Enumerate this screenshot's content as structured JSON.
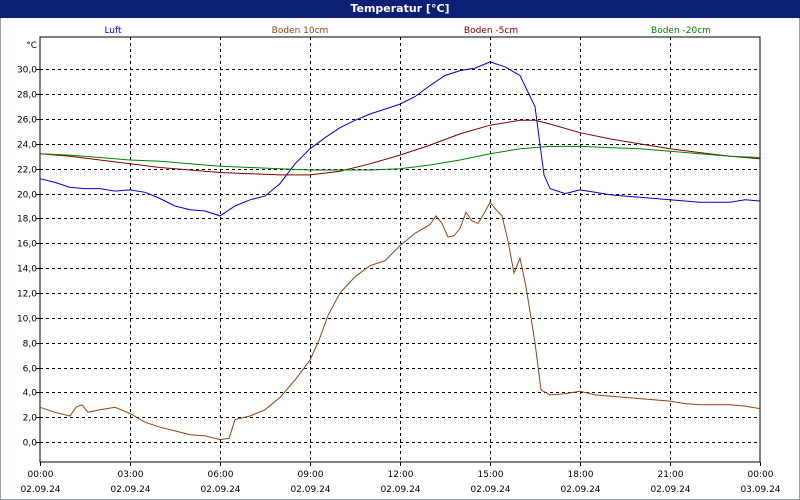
{
  "window": {
    "title": "Temperatur [°C]"
  },
  "chart_data": {
    "type": "line",
    "title": "Temperatur [°C]",
    "ylabel": "°C",
    "ylim": [
      -1.6,
      32.6
    ],
    "grid": true,
    "legend": "top",
    "y_ticks": [
      "0,0",
      "2,0",
      "4,0",
      "6,0",
      "8,0",
      "10,0",
      "12,0",
      "14,0",
      "16,0",
      "18,0",
      "20,0",
      "22,0",
      "24,0",
      "26,0",
      "28,0",
      "30,0"
    ],
    "x_ticks": [
      {
        "time": "00:00",
        "date": "02.09.24"
      },
      {
        "time": "03:00",
        "date": "02.09.24"
      },
      {
        "time": "06:00",
        "date": "02.09.24"
      },
      {
        "time": "09:00",
        "date": "02.09.24"
      },
      {
        "time": "12:00",
        "date": "02.09.24"
      },
      {
        "time": "15:00",
        "date": "02.09.24"
      },
      {
        "time": "18:00",
        "date": "02.09.24"
      },
      {
        "time": "21:00",
        "date": "02.09.24"
      },
      {
        "time": "00:00",
        "date": "03.09.24"
      }
    ],
    "x_unit": "hours since 02.09.24 00:00",
    "series": [
      {
        "name": "Luft",
        "color": "#0000cc",
        "x": [
          0,
          0.5,
          1,
          1.5,
          2,
          2.5,
          3,
          3.5,
          4,
          4.5,
          5,
          5.5,
          6,
          6.5,
          7,
          7.5,
          8,
          8.5,
          9,
          9.5,
          10,
          10.5,
          11,
          11.5,
          12,
          12.5,
          13,
          13.5,
          14,
          14.5,
          15,
          15.5,
          16,
          16.5,
          16.8,
          17,
          17.5,
          18,
          18.5,
          19,
          19.5,
          20,
          20.5,
          21,
          21.5,
          22,
          22.5,
          23,
          23.5,
          24
        ],
        "y": [
          21.2,
          20.9,
          20.5,
          20.4,
          20.4,
          20.2,
          20.3,
          20.1,
          19.6,
          19.0,
          18.7,
          18.6,
          18.2,
          19.0,
          19.5,
          19.8,
          20.8,
          22.4,
          23.6,
          24.5,
          25.3,
          25.9,
          26.4,
          26.8,
          27.2,
          27.8,
          28.7,
          29.5,
          29.9,
          30.1,
          30.6,
          30.2,
          29.5,
          27.0,
          21.5,
          20.4,
          20.0,
          20.3,
          20.1,
          19.9,
          19.8,
          19.7,
          19.6,
          19.5,
          19.4,
          19.3,
          19.3,
          19.3,
          19.5,
          19.4
        ]
      },
      {
        "name": "Boden 10cm",
        "color": "#8b4513",
        "x": [
          0,
          0.5,
          1,
          1.2,
          1.4,
          1.6,
          2,
          2.5,
          3,
          3.5,
          4,
          4.5,
          5,
          5.5,
          6,
          6.3,
          6.5,
          7,
          7.5,
          8,
          8.5,
          9,
          9.3,
          9.6,
          10,
          10.5,
          11,
          11.5,
          12,
          12.5,
          13,
          13.2,
          13.4,
          13.6,
          13.8,
          14,
          14.2,
          14.4,
          14.6,
          14.8,
          15,
          15.2,
          15.4,
          15.6,
          15.8,
          16,
          16.2,
          16.5,
          16.7,
          17,
          17.5,
          18,
          18.5,
          19,
          19.5,
          20,
          20.5,
          21,
          21.5,
          22,
          22.5,
          23,
          23.5,
          24
        ],
        "y": [
          2.8,
          2.4,
          2.1,
          2.8,
          3.0,
          2.4,
          2.6,
          2.8,
          2.3,
          1.6,
          1.2,
          0.9,
          0.6,
          0.5,
          0.2,
          0.3,
          1.8,
          2.1,
          2.6,
          3.6,
          5.0,
          6.6,
          8.2,
          10.2,
          12.0,
          13.3,
          14.2,
          14.6,
          15.8,
          16.8,
          17.5,
          18.2,
          17.6,
          16.5,
          16.6,
          17.2,
          18.5,
          17.8,
          17.6,
          18.4,
          19.3,
          18.7,
          18.2,
          16.2,
          13.6,
          14.8,
          12.5,
          8.0,
          4.2,
          3.8,
          3.9,
          4.1,
          3.8,
          3.7,
          3.6,
          3.5,
          3.4,
          3.3,
          3.1,
          3.0,
          3.0,
          3.0,
          2.9,
          2.7
        ]
      },
      {
        "name": "Boden -5cm",
        "color": "#800000",
        "x": [
          0,
          1,
          2,
          3,
          4,
          5,
          6,
          7,
          8,
          9,
          10,
          11,
          12,
          13,
          14,
          15,
          16,
          16.5,
          17,
          18,
          19,
          20,
          21,
          22,
          23,
          24
        ],
        "y": [
          23.2,
          23.0,
          22.7,
          22.4,
          22.1,
          21.9,
          21.7,
          21.6,
          21.5,
          21.5,
          21.8,
          22.4,
          23.1,
          23.9,
          24.8,
          25.5,
          25.9,
          25.9,
          25.6,
          24.9,
          24.4,
          24.0,
          23.6,
          23.3,
          23.0,
          22.8
        ]
      },
      {
        "name": "Boden -20cm",
        "color": "#008000",
        "x": [
          0,
          1,
          2,
          3,
          4,
          5,
          6,
          7,
          8,
          9,
          10,
          11,
          12,
          13,
          14,
          15,
          16,
          17,
          18,
          19,
          20,
          21,
          22,
          23,
          24
        ],
        "y": [
          23.2,
          23.1,
          22.9,
          22.7,
          22.6,
          22.4,
          22.2,
          22.1,
          22.0,
          21.9,
          21.9,
          21.9,
          22.0,
          22.3,
          22.7,
          23.2,
          23.6,
          23.8,
          23.8,
          23.7,
          23.6,
          23.4,
          23.2,
          23.0,
          22.9
        ]
      }
    ]
  }
}
